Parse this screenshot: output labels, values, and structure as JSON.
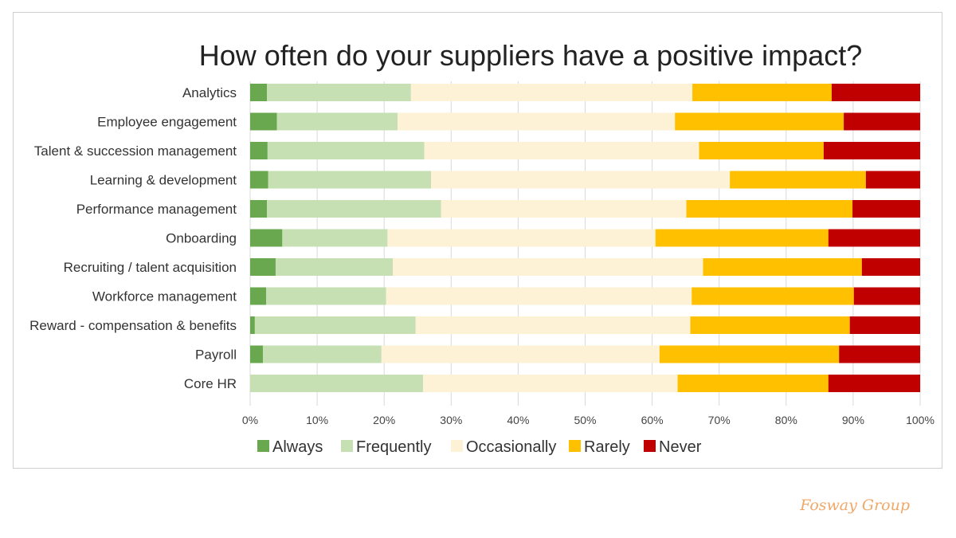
{
  "colors": {
    "always": "#6aa84f",
    "frequently": "#c6e0b4",
    "occasionally": "#fdf1d6",
    "rarely": "#ffc000",
    "never": "#c00000",
    "gridline": "#d9d9d9",
    "brand": "#f0a868"
  },
  "chart_data": {
    "type": "bar",
    "orientation": "horizontal",
    "stacked": true,
    "percent": true,
    "title": "How often do your suppliers have a positive impact?",
    "xlim": [
      0,
      100
    ],
    "x_ticks": [
      "0%",
      "10%",
      "20%",
      "30%",
      "40%",
      "50%",
      "60%",
      "70%",
      "80%",
      "90%",
      "100%"
    ],
    "grid": "vertical",
    "legend_position": "bottom",
    "categories": [
      "Analytics",
      "Employee engagement",
      "Talent & succession management",
      "Learning & development",
      "Performance management",
      "Onboarding",
      "Recruiting / talent acquisition",
      "Workforce management",
      "Reward - compensation & benefits",
      "Payroll",
      "Core HR"
    ],
    "series": [
      {
        "name": "Always",
        "color_key": "always",
        "values": [
          2.5,
          4,
          2.6,
          2.7,
          2.5,
          4.8,
          3.8,
          2.4,
          0.7,
          1.9,
          0
        ]
      },
      {
        "name": "Frequently",
        "color_key": "frequently",
        "values": [
          21.5,
          18,
          23.4,
          24.3,
          26,
          15.7,
          17.5,
          17.9,
          24,
          17.7,
          25.8
        ]
      },
      {
        "name": "Occasionally",
        "color_key": "occasionally",
        "values": [
          42,
          41.4,
          41,
          44.6,
          36.6,
          40,
          46.3,
          45.6,
          41,
          41.5,
          38
        ]
      },
      {
        "name": "Rarely",
        "color_key": "rarely",
        "values": [
          20.8,
          25.2,
          18.6,
          20.3,
          24.8,
          25.8,
          23.7,
          24.2,
          23.8,
          26.8,
          22.5
        ]
      },
      {
        "name": "Never",
        "color_key": "never",
        "values": [
          13.2,
          11.4,
          14.4,
          8.1,
          10.1,
          13.7,
          8.7,
          9.9,
          10.5,
          12.1,
          13.7
        ]
      }
    ]
  },
  "footer": {
    "brand": "Fosway Group"
  }
}
